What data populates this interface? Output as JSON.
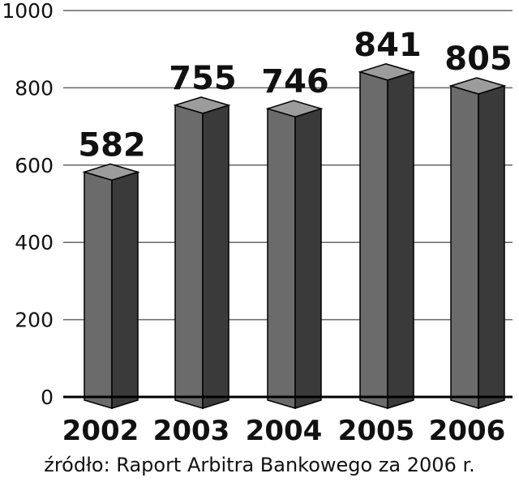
{
  "chart_data": {
    "type": "bar",
    "categories": [
      "2002",
      "2003",
      "2004",
      "2005",
      "2006"
    ],
    "values": [
      582,
      755,
      746,
      841,
      805
    ],
    "title": "",
    "xlabel": "",
    "ylabel": "",
    "ylim": [
      0,
      1000
    ],
    "yticks": [
      0,
      200,
      400,
      600,
      800,
      1000
    ],
    "grid": true,
    "data_labels": [
      "582",
      "755",
      "746",
      "841",
      "805"
    ],
    "colors": {
      "bar_front": "#6b6b6b",
      "bar_side": "#3a3a3a",
      "bar_top": "#9c9c9c",
      "grid": "#666666",
      "axis": "#000000"
    }
  },
  "source": "źródło: Raport Arbitra Bankowego za 2006 r."
}
